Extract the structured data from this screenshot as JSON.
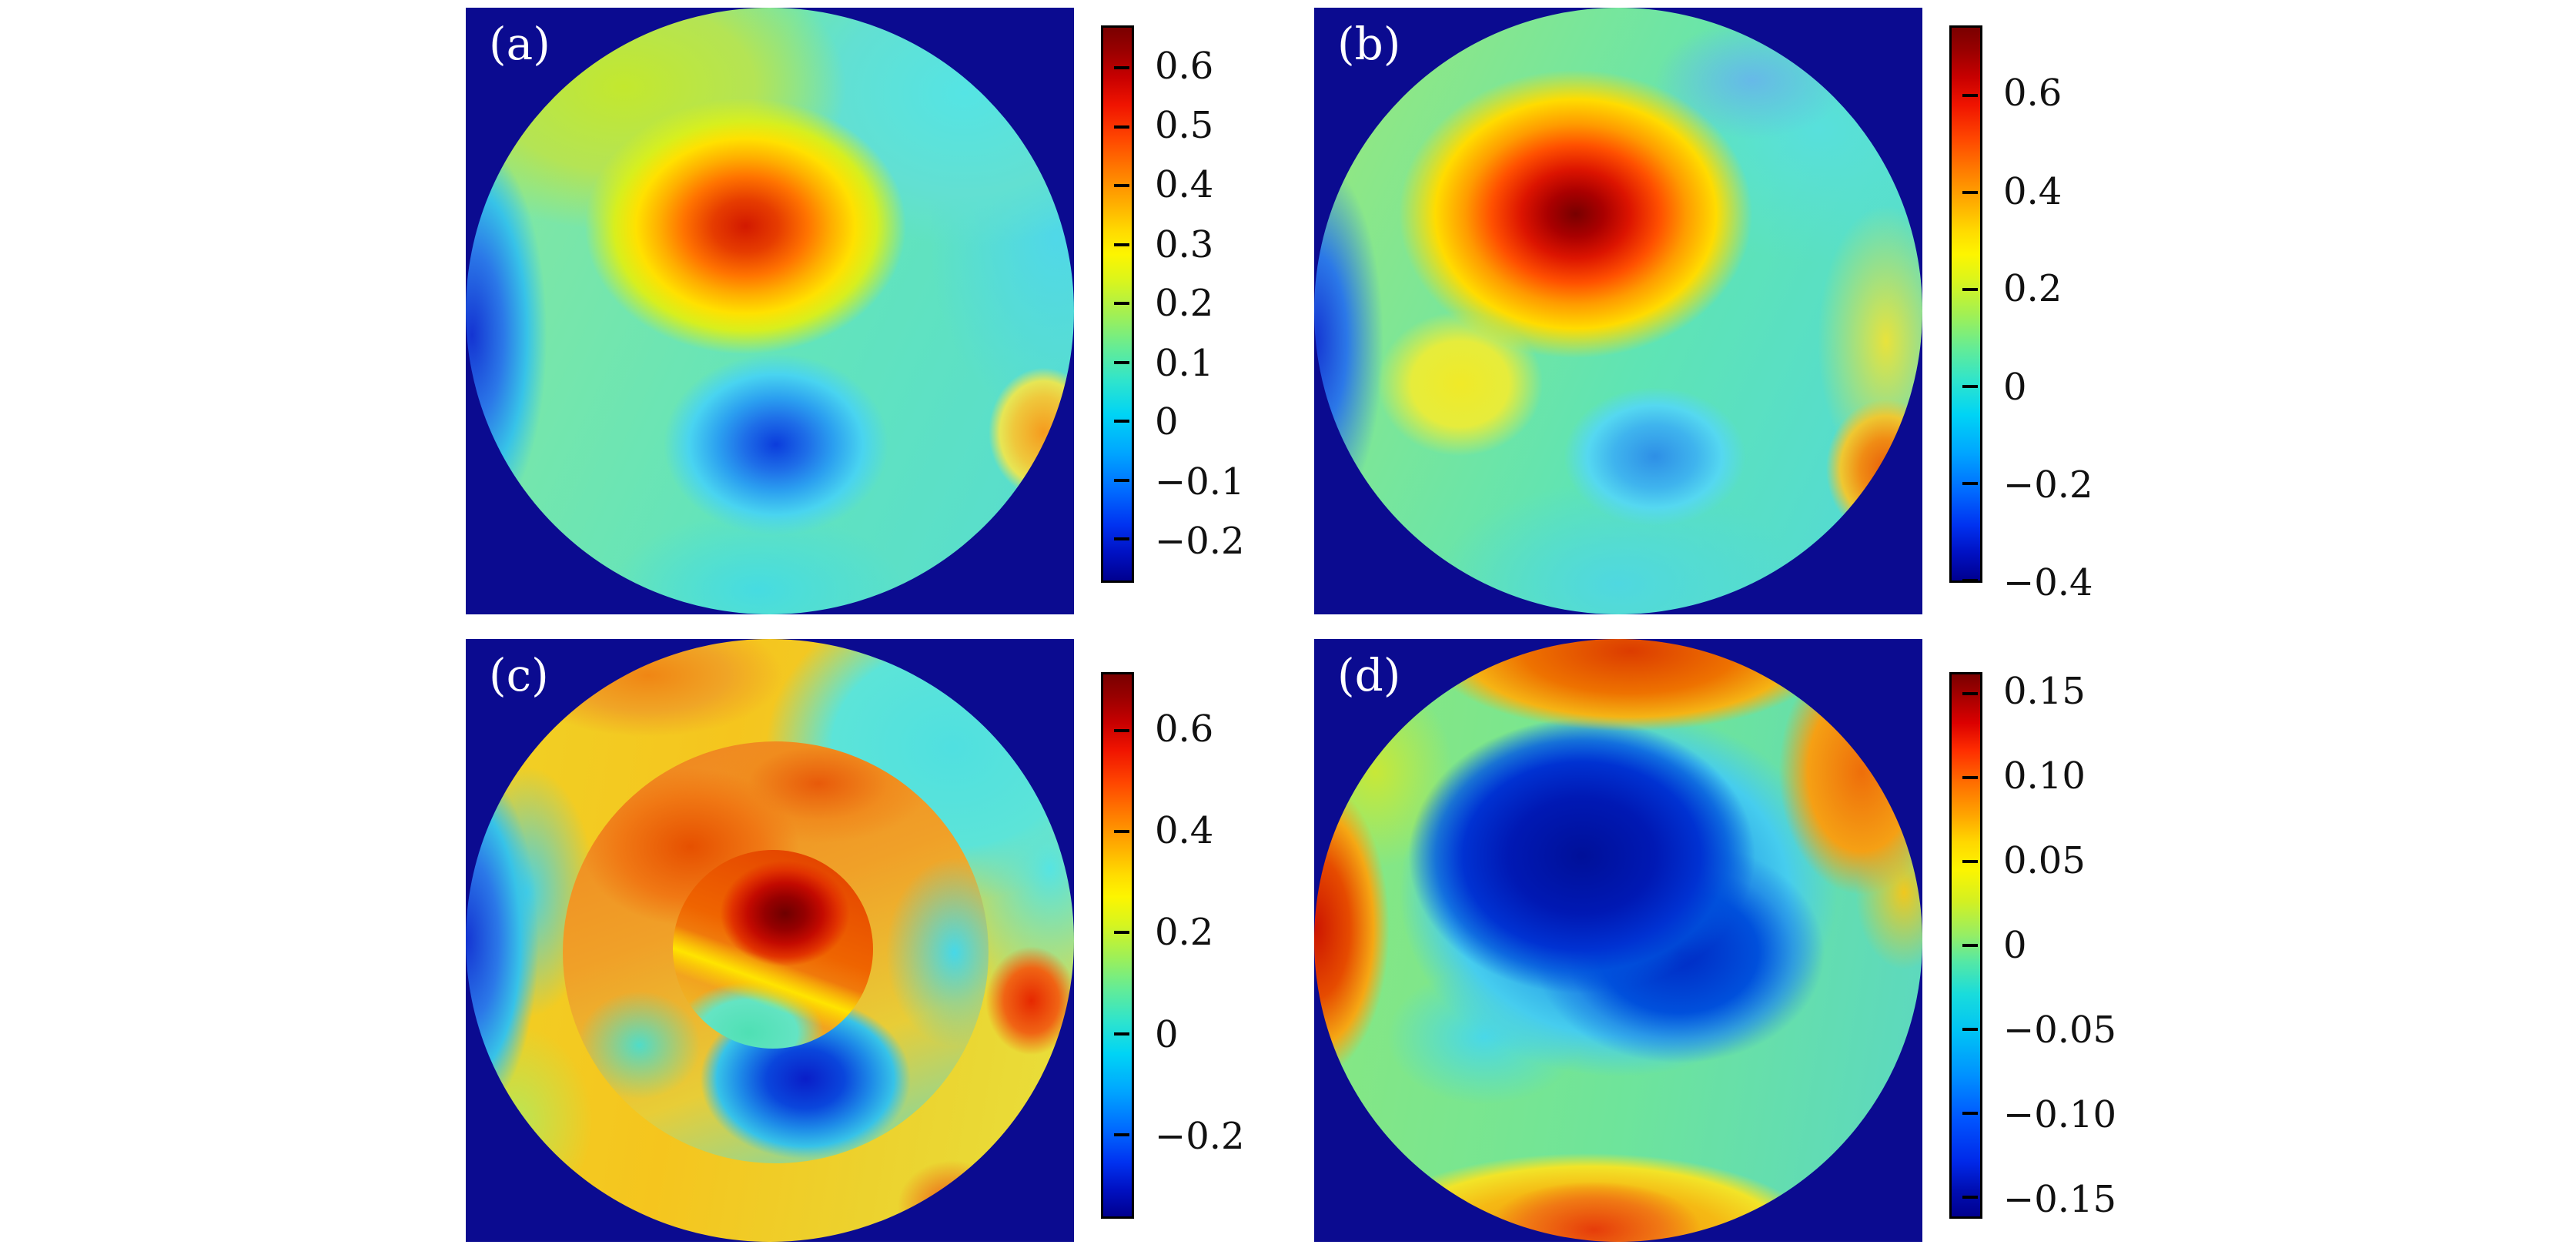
{
  "figure": {
    "background_color": "#ffffff",
    "aperture_background_color": "#0b0b90",
    "colormap": "jet",
    "colormap_max_color": "#7a0000",
    "colormap_min_color": "#00008f",
    "panels": [
      {
        "key": "a",
        "label": "(a)",
        "colorbar": {
          "ticks": [
            {
              "label": "0.6",
              "f": 0.073
            },
            {
              "label": "0.5",
              "f": 0.18
            },
            {
              "label": "0.4",
              "f": 0.286
            },
            {
              "label": "0.3",
              "f": 0.393
            },
            {
              "label": "0.2",
              "f": 0.499
            },
            {
              "label": "0.1",
              "f": 0.606
            },
            {
              "label": "0",
              "f": 0.712
            },
            {
              "label": "−0.1",
              "f": 0.819
            },
            {
              "label": "−0.2",
              "f": 0.925
            }
          ]
        }
      },
      {
        "key": "b",
        "label": "(b)",
        "colorbar": {
          "ticks": [
            {
              "label": "0.6",
              "f": 0.122
            },
            {
              "label": "0.4",
              "f": 0.298
            },
            {
              "label": "0.2",
              "f": 0.473
            },
            {
              "label": "0",
              "f": 0.649
            },
            {
              "label": "−0.2",
              "f": 0.824
            },
            {
              "label": "−0.4",
              "f": 1.0
            }
          ]
        }
      },
      {
        "key": "c",
        "label": "(c)",
        "colorbar": {
          "ticks": [
            {
              "label": "0.6",
              "f": 0.104
            },
            {
              "label": "0.4",
              "f": 0.29
            },
            {
              "label": "0.2",
              "f": 0.476
            },
            {
              "label": "0",
              "f": 0.663
            },
            {
              "label": "−0.2",
              "f": 0.849
            }
          ]
        }
      },
      {
        "key": "d",
        "label": "(d)",
        "colorbar": {
          "ticks": [
            {
              "label": "0.15",
              "f": 0.035
            },
            {
              "label": "0.10",
              "f": 0.19
            },
            {
              "label": "0.05",
              "f": 0.345
            },
            {
              "label": "0",
              "f": 0.5
            },
            {
              "label": "−0.05",
              "f": 0.655
            },
            {
              "label": "−0.10",
              "f": 0.81
            },
            {
              "label": "−0.15",
              "f": 0.965
            }
          ]
        }
      }
    ]
  },
  "chart_data": [
    {
      "type": "heatmap",
      "panel": "(a)",
      "colormap": "jet",
      "shape": "circular aperture on dark-blue square background",
      "colorbar_ticks": [
        0.6,
        0.5,
        0.4,
        0.3,
        0.2,
        0.1,
        0,
        -0.1,
        -0.2
      ],
      "value_range": [
        -0.27,
        0.67
      ],
      "features": "Smooth wavefront map: red positive lobe (~0.55 peak) upper-center; blue negative lobe (~-0.2) lower-center; blue crescent along left rim; small orange patch on right rim at ~70% height; green-cyan elsewhere; yellow-green upper-left; cyan upper-right."
    },
    {
      "type": "heatmap",
      "panel": "(b)",
      "colormap": "jet",
      "shape": "circular aperture on dark-blue square background",
      "colorbar_ticks": [
        0.6,
        0.4,
        0.2,
        0,
        -0.2,
        -0.4
      ],
      "value_range": [
        -0.4,
        0.74
      ],
      "features": "Smooth wavefront map: large dark-red positive lobe (~0.7 peak) upper-center-left; light-blue negative pocket lower-center; blue band on left rim; orange patch on lower-right rim; yellow patch lower-left; cyan right half and bottom."
    },
    {
      "type": "heatmap",
      "panel": "(c)",
      "colormap": "jet",
      "shape": "circular aperture with two concentric sub-aperture discontinuities (zone diameters ~100%, ~70%, ~33%)",
      "colorbar_ticks": [
        0.6,
        0.4,
        0.2,
        0,
        -0.2
      ],
      "value_range": [
        -0.36,
        0.71
      ],
      "features": "Stitched/segmented map with hard circular edges: inner zone has dark-red peak (~0.7) above a yellow diagonal boundary and cyan-green below; middle annulus is orange-red on top/left with a dark-blue pocket (~-0.3) at bottom and cyan on the right; outer annulus mostly yellow-orange with cyan upper-right, blue band on left rim and red patches on right and lower-right rim."
    },
    {
      "type": "heatmap",
      "panel": "(d)",
      "colormap": "jet",
      "shape": "circular aperture on dark-blue square background",
      "colorbar_ticks": [
        0.15,
        0.1,
        0.05,
        0,
        -0.05,
        -0.1,
        -0.15
      ],
      "value_range": [
        -0.16,
        0.16
      ],
      "features": "Residual error map: large dark-blue negative basin (~-0.16) center/upper extending diagonally; red-orange positive arc along top-right rim; red patch on left rim; orange-red band along bottom rim; cyan pocket lower-left; green-cyan background elsewhere."
    }
  ]
}
